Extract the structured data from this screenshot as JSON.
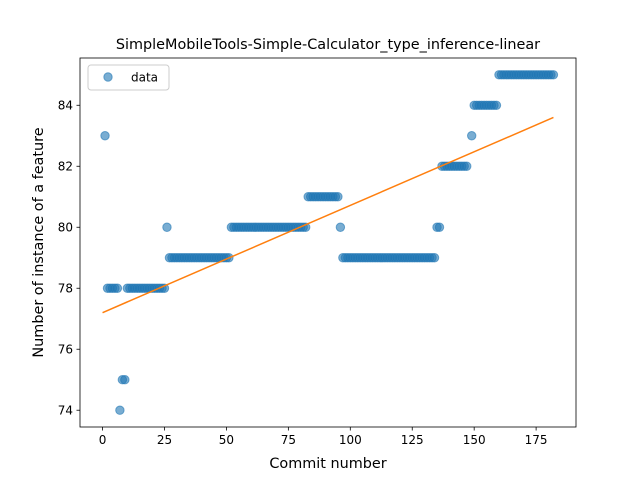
{
  "chart_data": {
    "type": "scatter",
    "title": "SimpleMobileTools-Simple-Calculator_type_inference-linear",
    "xlabel": "Commit number",
    "ylabel": "Number of instance of a feature",
    "xlim": [
      -9.1,
      191.1
    ],
    "ylim": [
      73.45,
      85.55
    ],
    "x_ticks": [
      0,
      25,
      50,
      75,
      100,
      125,
      150,
      175
    ],
    "y_ticks": [
      74,
      76,
      78,
      80,
      82,
      84
    ],
    "grid": false,
    "legend_position": "upper left",
    "colors": {
      "data": "#1f77b4",
      "fit": "#ff7f0e"
    },
    "series": [
      {
        "name": "data",
        "kind": "scatter",
        "points": [
          [
            1,
            83
          ],
          [
            2,
            78
          ],
          [
            3,
            78
          ],
          [
            4,
            78
          ],
          [
            5,
            78
          ],
          [
            6,
            78
          ],
          [
            7,
            74
          ],
          [
            8,
            75
          ],
          [
            9,
            75
          ],
          [
            10,
            78
          ],
          [
            11,
            78
          ],
          [
            12,
            78
          ],
          [
            13,
            78
          ],
          [
            14,
            78
          ],
          [
            15,
            78
          ],
          [
            16,
            78
          ],
          [
            17,
            78
          ],
          [
            18,
            78
          ],
          [
            19,
            78
          ],
          [
            20,
            78
          ],
          [
            21,
            78
          ],
          [
            22,
            78
          ],
          [
            23,
            78
          ],
          [
            24,
            78
          ],
          [
            25,
            78
          ],
          [
            26,
            80
          ],
          [
            27,
            79
          ],
          [
            28,
            79
          ],
          [
            29,
            79
          ],
          [
            30,
            79
          ],
          [
            31,
            79
          ],
          [
            32,
            79
          ],
          [
            33,
            79
          ],
          [
            34,
            79
          ],
          [
            35,
            79
          ],
          [
            36,
            79
          ],
          [
            37,
            79
          ],
          [
            38,
            79
          ],
          [
            39,
            79
          ],
          [
            40,
            79
          ],
          [
            41,
            79
          ],
          [
            42,
            79
          ],
          [
            43,
            79
          ],
          [
            44,
            79
          ],
          [
            45,
            79
          ],
          [
            46,
            79
          ],
          [
            47,
            79
          ],
          [
            48,
            79
          ],
          [
            49,
            79
          ],
          [
            50,
            79
          ],
          [
            51,
            79
          ],
          [
            52,
            80
          ],
          [
            53,
            80
          ],
          [
            54,
            80
          ],
          [
            55,
            80
          ],
          [
            56,
            80
          ],
          [
            57,
            80
          ],
          [
            58,
            80
          ],
          [
            59,
            80
          ],
          [
            60,
            80
          ],
          [
            61,
            80
          ],
          [
            62,
            80
          ],
          [
            63,
            80
          ],
          [
            64,
            80
          ],
          [
            65,
            80
          ],
          [
            66,
            80
          ],
          [
            67,
            80
          ],
          [
            68,
            80
          ],
          [
            69,
            80
          ],
          [
            70,
            80
          ],
          [
            71,
            80
          ],
          [
            72,
            80
          ],
          [
            73,
            80
          ],
          [
            74,
            80
          ],
          [
            75,
            80
          ],
          [
            76,
            80
          ],
          [
            77,
            80
          ],
          [
            78,
            80
          ],
          [
            79,
            80
          ],
          [
            80,
            80
          ],
          [
            81,
            80
          ],
          [
            82,
            80
          ],
          [
            83,
            81
          ],
          [
            84,
            81
          ],
          [
            85,
            81
          ],
          [
            86,
            81
          ],
          [
            87,
            81
          ],
          [
            88,
            81
          ],
          [
            89,
            81
          ],
          [
            90,
            81
          ],
          [
            91,
            81
          ],
          [
            92,
            81
          ],
          [
            93,
            81
          ],
          [
            94,
            81
          ],
          [
            95,
            81
          ],
          [
            96,
            80
          ],
          [
            97,
            79
          ],
          [
            98,
            79
          ],
          [
            99,
            79
          ],
          [
            100,
            79
          ],
          [
            101,
            79
          ],
          [
            102,
            79
          ],
          [
            103,
            79
          ],
          [
            104,
            79
          ],
          [
            105,
            79
          ],
          [
            106,
            79
          ],
          [
            107,
            79
          ],
          [
            108,
            79
          ],
          [
            109,
            79
          ],
          [
            110,
            79
          ],
          [
            111,
            79
          ],
          [
            112,
            79
          ],
          [
            113,
            79
          ],
          [
            114,
            79
          ],
          [
            115,
            79
          ],
          [
            116,
            79
          ],
          [
            117,
            79
          ],
          [
            118,
            79
          ],
          [
            119,
            79
          ],
          [
            120,
            79
          ],
          [
            121,
            79
          ],
          [
            122,
            79
          ],
          [
            123,
            79
          ],
          [
            124,
            79
          ],
          [
            125,
            79
          ],
          [
            126,
            79
          ],
          [
            127,
            79
          ],
          [
            128,
            79
          ],
          [
            129,
            79
          ],
          [
            130,
            79
          ],
          [
            131,
            79
          ],
          [
            132,
            79
          ],
          [
            133,
            79
          ],
          [
            134,
            79
          ],
          [
            135,
            80
          ],
          [
            136,
            80
          ],
          [
            137,
            82
          ],
          [
            138,
            82
          ],
          [
            139,
            82
          ],
          [
            140,
            82
          ],
          [
            141,
            82
          ],
          [
            142,
            82
          ],
          [
            143,
            82
          ],
          [
            144,
            82
          ],
          [
            145,
            82
          ],
          [
            146,
            82
          ],
          [
            147,
            82
          ],
          [
            149,
            83
          ],
          [
            150,
            84
          ],
          [
            151,
            84
          ],
          [
            152,
            84
          ],
          [
            153,
            84
          ],
          [
            154,
            84
          ],
          [
            155,
            84
          ],
          [
            156,
            84
          ],
          [
            157,
            84
          ],
          [
            158,
            84
          ],
          [
            159,
            84
          ],
          [
            160,
            85
          ],
          [
            161,
            85
          ],
          [
            162,
            85
          ],
          [
            163,
            85
          ],
          [
            164,
            85
          ],
          [
            165,
            85
          ],
          [
            166,
            85
          ],
          [
            167,
            85
          ],
          [
            168,
            85
          ],
          [
            169,
            85
          ],
          [
            170,
            85
          ],
          [
            171,
            85
          ],
          [
            172,
            85
          ],
          [
            173,
            85
          ],
          [
            174,
            85
          ],
          [
            175,
            85
          ],
          [
            176,
            85
          ],
          [
            177,
            85
          ],
          [
            178,
            85
          ],
          [
            179,
            85
          ],
          [
            180,
            85
          ],
          [
            181,
            85
          ],
          [
            182,
            85
          ]
        ]
      },
      {
        "kind": "line",
        "points": [
          [
            0,
            77.2
          ],
          [
            182,
            83.6
          ]
        ]
      }
    ]
  }
}
